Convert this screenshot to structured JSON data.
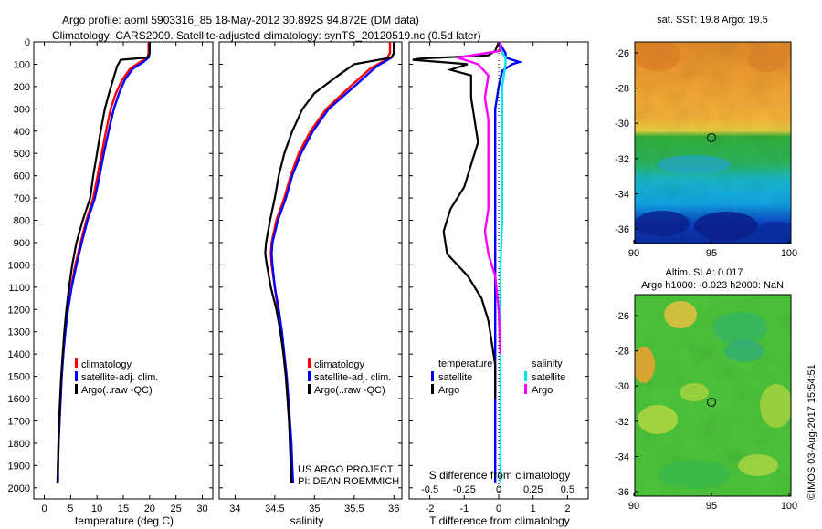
{
  "header": {
    "title_line1": "Argo profile: aoml 5903316_85 18-May-2012 30.892S 94.872E (DM data)",
    "title_line2": "Climatology: CARS2009. Satellite-adjusted climatology: synTS_20120519.nc (0.5d later)"
  },
  "colors": {
    "climatology": "#ff0000",
    "satellite": "#0000ff",
    "argo": "#000000",
    "satellite_salinity": "#00e5ee",
    "argo_salinity": "#ff00ff"
  },
  "chart_data": [
    {
      "type": "line",
      "id": "temperature",
      "xlabel": "temperature (deg C)",
      "ylabel": "",
      "xlim": [
        -2,
        32
      ],
      "ylim": [
        2050,
        0
      ],
      "xticks": [
        0,
        5,
        10,
        15,
        20,
        25,
        30
      ],
      "yticks": [
        0,
        100,
        200,
        300,
        400,
        500,
        600,
        700,
        800,
        900,
        1000,
        1100,
        1200,
        1300,
        1400,
        1500,
        1600,
        1700,
        1800,
        1900,
        2000
      ],
      "legend": [
        "climatology",
        "satellite-adj. clim.",
        "Argo(..raw -QC)"
      ],
      "series": [
        {
          "name": "climatology",
          "color": "#ff0000",
          "points": [
            [
              19.8,
              0
            ],
            [
              19.8,
              50
            ],
            [
              19.6,
              70
            ],
            [
              18.2,
              90
            ],
            [
              16.3,
              120
            ],
            [
              14.8,
              170
            ],
            [
              13.6,
              230
            ],
            [
              12.6,
              300
            ],
            [
              11.7,
              400
            ],
            [
              10.9,
              500
            ],
            [
              10.1,
              600
            ],
            [
              9.3,
              700
            ],
            [
              8.0,
              800
            ],
            [
              6.9,
              900
            ],
            [
              5.9,
              1000
            ],
            [
              5.1,
              1100
            ],
            [
              4.4,
              1200
            ],
            [
              3.9,
              1300
            ],
            [
              3.6,
              1400
            ],
            [
              3.3,
              1500
            ],
            [
              3.1,
              1600
            ],
            [
              2.9,
              1700
            ],
            [
              2.7,
              1800
            ],
            [
              2.6,
              1900
            ],
            [
              2.5,
              1980
            ]
          ]
        },
        {
          "name": "satellite-adj. clim.",
          "color": "#0000ff",
          "points": [
            [
              20.0,
              0
            ],
            [
              20.0,
              50
            ],
            [
              19.8,
              70
            ],
            [
              18.8,
              90
            ],
            [
              16.8,
              120
            ],
            [
              15.3,
              170
            ],
            [
              14.2,
              230
            ],
            [
              13.2,
              300
            ],
            [
              12.2,
              400
            ],
            [
              11.3,
              500
            ],
            [
              10.5,
              600
            ],
            [
              9.6,
              700
            ],
            [
              8.2,
              800
            ],
            [
              7.1,
              900
            ],
            [
              6.1,
              1000
            ],
            [
              5.2,
              1100
            ],
            [
              4.5,
              1200
            ],
            [
              4.0,
              1300
            ],
            [
              3.6,
              1400
            ],
            [
              3.3,
              1500
            ],
            [
              3.1,
              1600
            ],
            [
              2.9,
              1700
            ],
            [
              2.7,
              1800
            ],
            [
              2.6,
              1900
            ],
            [
              2.6,
              1980
            ]
          ]
        },
        {
          "name": "Argo(..raw -QC)",
          "color": "#000000",
          "points": [
            [
              20.0,
              0
            ],
            [
              20.0,
              50
            ],
            [
              19.6,
              70
            ],
            [
              14.5,
              80
            ],
            [
              13.8,
              110
            ],
            [
              13.3,
              150
            ],
            [
              12.3,
              230
            ],
            [
              11.5,
              300
            ],
            [
              10.7,
              400
            ],
            [
              10.0,
              500
            ],
            [
              9.3,
              600
            ],
            [
              8.7,
              700
            ],
            [
              7.3,
              800
            ],
            [
              6.1,
              900
            ],
            [
              5.3,
              1000
            ],
            [
              4.7,
              1100
            ],
            [
              4.2,
              1200
            ],
            [
              3.8,
              1300
            ],
            [
              3.5,
              1400
            ],
            [
              3.2,
              1500
            ],
            [
              3.0,
              1600
            ],
            [
              2.8,
              1700
            ],
            [
              2.7,
              1800
            ],
            [
              2.6,
              1900
            ],
            [
              2.5,
              1980
            ]
          ]
        }
      ]
    },
    {
      "type": "line",
      "id": "salinity",
      "xlabel": "salinity",
      "ylabel": "",
      "xlim": [
        33.8,
        36.1
      ],
      "ylim": [
        2050,
        0
      ],
      "xticks": [
        34,
        34.5,
        35,
        35.5,
        36
      ],
      "xticklabels": [
        "34",
        "34.5",
        "35",
        "35.5",
        "36"
      ],
      "legend": [
        "climatology",
        "satellite-adj. clim.",
        "Argo(..raw -QC)"
      ],
      "series": [
        {
          "name": "climatology",
          "color": "#ff0000",
          "points": [
            [
              35.95,
              0
            ],
            [
              35.95,
              50
            ],
            [
              35.9,
              80
            ],
            [
              35.7,
              120
            ],
            [
              35.45,
              200
            ],
            [
              35.15,
              300
            ],
            [
              34.95,
              400
            ],
            [
              34.8,
              500
            ],
            [
              34.7,
              600
            ],
            [
              34.62,
              700
            ],
            [
              34.52,
              800
            ],
            [
              34.46,
              900
            ],
            [
              34.45,
              950
            ],
            [
              34.46,
              1000
            ],
            [
              34.5,
              1100
            ],
            [
              34.54,
              1200
            ],
            [
              34.58,
              1300
            ],
            [
              34.61,
              1400
            ],
            [
              34.64,
              1500
            ],
            [
              34.66,
              1600
            ],
            [
              34.68,
              1700
            ],
            [
              34.7,
              1800
            ],
            [
              34.71,
              1900
            ],
            [
              34.72,
              1980
            ]
          ]
        },
        {
          "name": "satellite-adj. clim.",
          "color": "#0000ff",
          "points": [
            [
              36.0,
              0
            ],
            [
              36.0,
              50
            ],
            [
              35.97,
              70
            ],
            [
              35.78,
              110
            ],
            [
              35.5,
              200
            ],
            [
              35.18,
              300
            ],
            [
              34.98,
              400
            ],
            [
              34.83,
              500
            ],
            [
              34.72,
              600
            ],
            [
              34.64,
              700
            ],
            [
              34.54,
              800
            ],
            [
              34.47,
              900
            ],
            [
              34.46,
              950
            ],
            [
              34.47,
              1000
            ],
            [
              34.5,
              1100
            ],
            [
              34.55,
              1200
            ],
            [
              34.59,
              1300
            ],
            [
              34.62,
              1400
            ],
            [
              34.65,
              1500
            ],
            [
              34.67,
              1600
            ],
            [
              34.69,
              1700
            ],
            [
              34.71,
              1800
            ],
            [
              34.72,
              1900
            ],
            [
              34.73,
              1980
            ]
          ]
        },
        {
          "name": "Argo(..raw -QC)",
          "color": "#000000",
          "points": [
            [
              36.0,
              0
            ],
            [
              36.0,
              50
            ],
            [
              35.97,
              70
            ],
            [
              35.5,
              100
            ],
            [
              35.3,
              150
            ],
            [
              35.0,
              230
            ],
            [
              34.85,
              300
            ],
            [
              34.72,
              400
            ],
            [
              34.62,
              500
            ],
            [
              34.55,
              600
            ],
            [
              34.5,
              700
            ],
            [
              34.44,
              800
            ],
            [
              34.39,
              900
            ],
            [
              34.38,
              950
            ],
            [
              34.4,
              1000
            ],
            [
              34.45,
              1100
            ],
            [
              34.52,
              1200
            ],
            [
              34.57,
              1300
            ],
            [
              34.61,
              1400
            ],
            [
              34.64,
              1500
            ],
            [
              34.66,
              1600
            ],
            [
              34.68,
              1700
            ],
            [
              34.69,
              1800
            ],
            [
              34.7,
              1900
            ],
            [
              34.71,
              1980
            ]
          ]
        }
      ],
      "annotations": [
        "US ARGO PROJECT",
        "PI: DEAN ROEMMICH"
      ]
    },
    {
      "type": "line",
      "id": "difference",
      "xlabel": "T difference from climatology",
      "xlabel_top": "S difference from climatology",
      "ylabel": "",
      "xlim": [
        -2.6,
        2.6
      ],
      "ylim": [
        2050,
        0
      ],
      "xticks": [
        -2,
        -1,
        0,
        1,
        2
      ],
      "xticklabels_S": [
        "-0.5",
        "-0.25",
        "0",
        "0.25",
        "0.5"
      ],
      "legend_left_title": "temperature",
      "legend_right_title": "salinity",
      "legend": [
        "satellite",
        "Argo",
        "satellite",
        "Argo"
      ],
      "series": [
        {
          "name": "temperature satellite",
          "color": "#0000ff",
          "points": [
            [
              0,
              0
            ],
            [
              0.2,
              50
            ],
            [
              0.2,
              70
            ],
            [
              0.6,
              90
            ],
            [
              0.4,
              100
            ],
            [
              0.1,
              130
            ],
            [
              0,
              200
            ],
            [
              -0.1,
              300
            ],
            [
              -0.1,
              400
            ],
            [
              -0.1,
              500
            ],
            [
              -0.1,
              600
            ],
            [
              -0.1,
              700
            ],
            [
              -0.1,
              800
            ],
            [
              -0.1,
              900
            ],
            [
              -0.1,
              1000
            ],
            [
              -0.1,
              1100
            ],
            [
              -0.1,
              1300
            ],
            [
              -0.1,
              1500
            ],
            [
              -0.1,
              1700
            ],
            [
              -0.1,
              1900
            ],
            [
              -0.1,
              1980
            ]
          ]
        },
        {
          "name": "temperature Argo",
          "color": "#000000",
          "points": [
            [
              0,
              0
            ],
            [
              -0.1,
              40
            ],
            [
              -0.3,
              60
            ],
            [
              -2.3,
              75
            ],
            [
              -2.5,
              80
            ],
            [
              -0.9,
              100
            ],
            [
              -1.4,
              125
            ],
            [
              -0.8,
              150
            ],
            [
              -0.8,
              250
            ],
            [
              -0.7,
              350
            ],
            [
              -0.6,
              450
            ],
            [
              -0.8,
              550
            ],
            [
              -1.0,
              650
            ],
            [
              -1.4,
              750
            ],
            [
              -1.6,
              850
            ],
            [
              -1.5,
              950
            ],
            [
              -0.9,
              1050
            ],
            [
              -0.5,
              1150
            ],
            [
              -0.3,
              1250
            ],
            [
              -0.2,
              1350
            ],
            [
              -0.1,
              1450
            ],
            [
              -0.1,
              1600
            ]
          ]
        },
        {
          "name": "salinity satellite",
          "color": "#00e5ee",
          "points": [
            [
              0,
              0
            ],
            [
              0.1,
              50
            ],
            [
              0.2,
              70
            ],
            [
              0.2,
              100
            ],
            [
              0.1,
              200
            ],
            [
              0.1,
              400
            ],
            [
              0.1,
              600
            ],
            [
              0.1,
              800
            ],
            [
              0.05,
              1000
            ],
            [
              0.05,
              1200
            ],
            [
              0.05,
              1400
            ],
            [
              0.05,
              1600
            ],
            [
              0.05,
              1800
            ],
            [
              0.05,
              1980
            ]
          ]
        },
        {
          "name": "salinity Argo",
          "color": "#ff00ff",
          "points": [
            [
              0,
              0
            ],
            [
              0.05,
              40
            ],
            [
              -1.2,
              70
            ],
            [
              -0.6,
              100
            ],
            [
              -0.3,
              150
            ],
            [
              -0.4,
              250
            ],
            [
              -0.3,
              350
            ],
            [
              -0.3,
              500
            ],
            [
              -0.3,
              650
            ],
            [
              -0.3,
              750
            ],
            [
              -0.4,
              850
            ],
            [
              -0.3,
              950
            ],
            [
              -0.1,
              1050
            ],
            [
              0,
              1200
            ],
            [
              0.05,
              1400
            ]
          ]
        }
      ]
    }
  ],
  "maps": {
    "sst": {
      "title": "sat. SST: 19.8 Argo: 19.5",
      "lon_ticks": [
        "90",
        "95",
        "100"
      ],
      "lat_ticks": [
        "-26",
        "-28",
        "-30",
        "-32",
        "-34",
        "-36"
      ],
      "marker": {
        "lon": 94.9,
        "lat": -30.9
      }
    },
    "sla": {
      "title_line1": "Altim. SLA: 0.017",
      "title_line2": "Argo h1000: -0.023 h2000: NaN",
      "lon_ticks": [
        "90",
        "95",
        "100"
      ],
      "lat_ticks": [
        "-26",
        "-28",
        "-30",
        "-32",
        "-34",
        "-36"
      ],
      "marker": {
        "lon": 94.9,
        "lat": -30.9
      }
    }
  },
  "footer_stamp": "©IMOS 03-Aug-2017 15:54:51"
}
